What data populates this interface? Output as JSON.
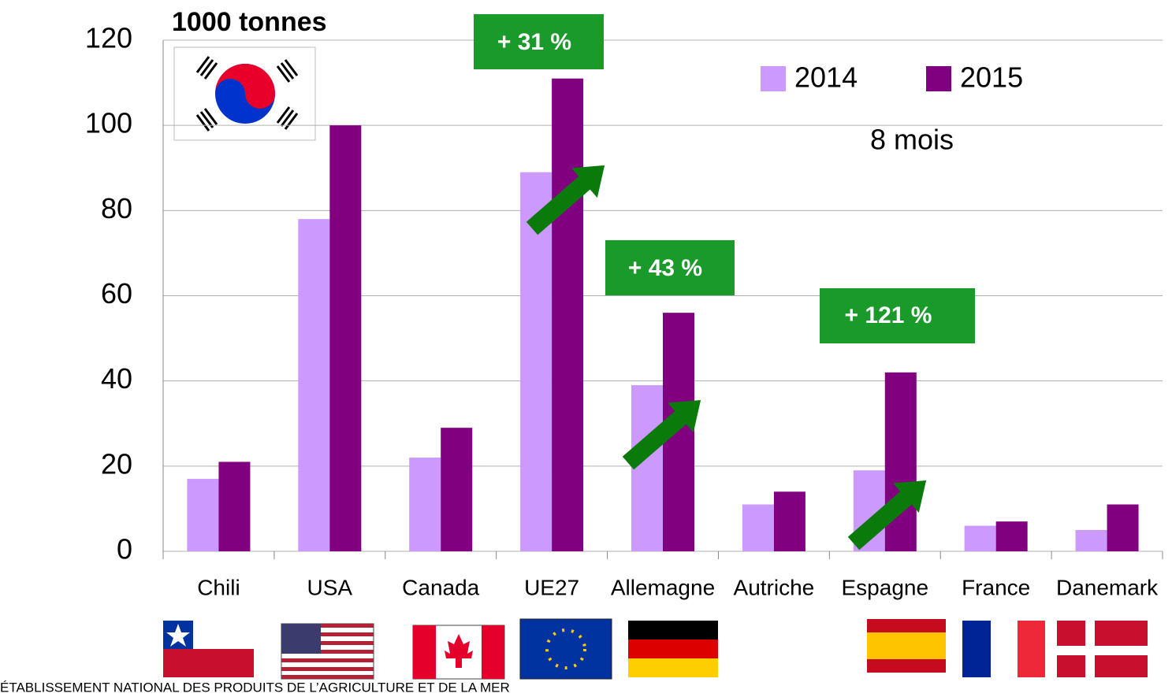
{
  "chart_data": {
    "type": "bar",
    "title": "1000 tonnes",
    "subtitle": "8 mois",
    "annotations": [
      "+ 31 %",
      "+ 43 %",
      "+ 121 %"
    ],
    "source": "ÉTABLISSEMENT NATIONAL DES PRODUITS DE L’AGRICULTURE ET DE LA MER",
    "categories": [
      "Chili",
      "USA",
      "Canada",
      "UE27",
      "Allemagne",
      "Autriche",
      "Espagne",
      "France",
      "Danemark"
    ],
    "series": [
      {
        "name": "2014",
        "color": "#cc99ff",
        "values": [
          17,
          78,
          22,
          89,
          39,
          11,
          19,
          6,
          5
        ]
      },
      {
        "name": "2015",
        "color": "#800080",
        "values": [
          21,
          100,
          29,
          111,
          56,
          14,
          42,
          7,
          11
        ]
      }
    ],
    "ylim": [
      0,
      120
    ],
    "yticks": [
      0,
      20,
      40,
      60,
      80,
      100,
      120
    ],
    "grid": true,
    "legend": "top-right"
  }
}
